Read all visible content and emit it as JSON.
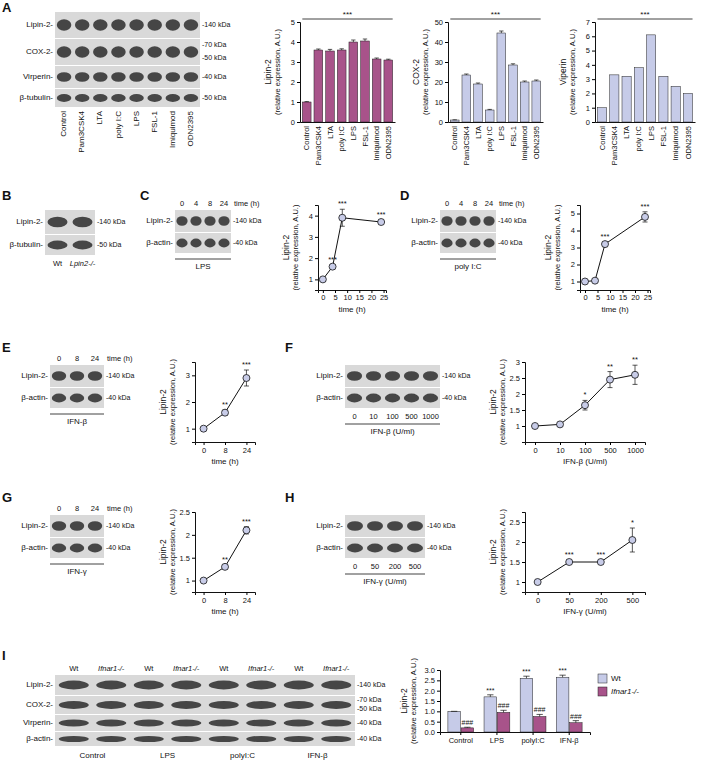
{
  "chart_data": [
    {
      "type": "bar",
      "categories": [
        "Control",
        "Pam3CSK4",
        "LTA",
        "poly I:C",
        "LPS",
        "FSL-1",
        "Imiquimod",
        "ODN2395"
      ],
      "values": [
        1,
        3.6,
        3.55,
        3.6,
        4.0,
        4.05,
        3.15,
        3.1
      ],
      "errors": [
        0.02,
        0.05,
        0.08,
        0.06,
        0.1,
        0.1,
        0.05,
        0.04
      ],
      "color": "#a8538a",
      "ylim": [
        0,
        5
      ],
      "yticks": [
        0,
        1,
        2,
        3,
        4,
        5
      ],
      "y_label": [
        "Lipin-2",
        "(relative expression, A.U.)"
      ],
      "annotation": "***"
    },
    {
      "type": "bar",
      "categories": [
        "Control",
        "Pam3CSK4",
        "LTA",
        "poly I:C",
        "LPS",
        "FSL-1",
        "Imiquimod",
        "ODN2395"
      ],
      "values": [
        1,
        23.5,
        19,
        6,
        44.5,
        28.5,
        20,
        20.5
      ],
      "errors": [
        0.1,
        0.5,
        0.5,
        0.3,
        1,
        0.6,
        0.5,
        0.5
      ],
      "color": "#c6cbe8",
      "ylim": [
        0,
        50
      ],
      "yticks": [
        0,
        10,
        20,
        30,
        40,
        50
      ],
      "y_label": [
        "COX-2",
        "(relative expression, A.U.)"
      ],
      "annotation": "***"
    },
    {
      "type": "bar",
      "categories": [
        "Control",
        "Pam3CSK4",
        "LTA",
        "poly I:C",
        "LPS",
        "FSL-1",
        "Imiquimod",
        "ODN2395"
      ],
      "values": [
        1,
        3.3,
        3.2,
        3.8,
        6.1,
        3.2,
        2.5,
        2.0
      ],
      "color": "#c6cbe8",
      "ylim": [
        0,
        7
      ],
      "yticks": [
        0,
        1,
        2,
        3,
        4,
        5,
        6,
        7
      ],
      "y_label": [
        "Viperin",
        "(relative expression, A.U.)"
      ],
      "annotation": "***"
    },
    {
      "type": "line",
      "x": [
        0,
        4,
        8,
        24
      ],
      "values": [
        1,
        1.6,
        3.9,
        3.7
      ],
      "errors": [
        0.05,
        0.1,
        0.4,
        0.1
      ],
      "annotations": [
        null,
        "***",
        "***",
        "***"
      ],
      "xlim": [
        -2,
        26
      ],
      "xticks": [
        0,
        5,
        10,
        15,
        20,
        25
      ],
      "ylim": [
        0.5,
        4.5
      ],
      "yticks": [
        1,
        2,
        3,
        4
      ],
      "x_label": "time (h)",
      "y_label": [
        "Lipin-2",
        "(relative expression, A.U.)"
      ],
      "color": "#c8cce8",
      "marker": "circle"
    },
    {
      "type": "line",
      "x": [
        0,
        4,
        8,
        24
      ],
      "values": [
        1,
        1.05,
        3.2,
        4.8
      ],
      "errors": [
        0.05,
        0.05,
        0.15,
        0.3
      ],
      "annotations": [
        null,
        null,
        "***",
        "***"
      ],
      "xlim": [
        -2,
        26
      ],
      "xticks": [
        0,
        5,
        10,
        15,
        20,
        25
      ],
      "ylim": [
        0.5,
        5.5
      ],
      "yticks": [
        1,
        2,
        3,
        4,
        5
      ],
      "x_label": "time (h)",
      "y_label": [
        "Lipin-2",
        "(relative expression, A.U.)"
      ],
      "color": "#c8cce8",
      "marker": "circle"
    },
    {
      "type": "line",
      "categories": [
        "0",
        "8",
        "24"
      ],
      "values": [
        1,
        1.6,
        2.9
      ],
      "errors": [
        0.03,
        0.1,
        0.3
      ],
      "annotations": [
        null,
        "**",
        "***"
      ],
      "ylim": [
        0.5,
        3.5
      ],
      "yticks": [
        1,
        2,
        3
      ],
      "x_label": "time (h)",
      "y_label": [
        "Lipin-2",
        "(relative expression, A.U.)"
      ],
      "color": "#c8cce8",
      "marker": "circle"
    },
    {
      "type": "line",
      "categories": [
        "0",
        "10",
        "100",
        "500",
        "1000"
      ],
      "values": [
        1,
        1.05,
        1.65,
        2.45,
        2.6
      ],
      "errors": [
        0.03,
        0.05,
        0.15,
        0.25,
        0.3
      ],
      "annotations": [
        null,
        null,
        "*",
        "**",
        "**"
      ],
      "ylim": [
        0.5,
        3
      ],
      "yticks": [
        1,
        1.5,
        2,
        2.5,
        3
      ],
      "x_label": "IFN-β (U/ml)",
      "y_label": [
        "Lipin-2",
        "(relative expression, A.U.)"
      ],
      "color": "#c8cce8",
      "marker": "circle"
    },
    {
      "type": "line",
      "categories": [
        "0",
        "8",
        "24"
      ],
      "values": [
        1,
        1.3,
        2.1
      ],
      "errors": [
        0.02,
        0.05,
        0.08
      ],
      "annotations": [
        null,
        "**",
        "***"
      ],
      "ylim": [
        0.75,
        2.5
      ],
      "yticks": [
        1,
        1.5,
        2,
        2.5
      ],
      "x_label": "time (h)",
      "y_label": [
        "Lipin-2",
        "(relative expression, A.U.)"
      ],
      "color": "#c8cce8",
      "marker": "circle"
    },
    {
      "type": "line",
      "categories": [
        "0",
        "50",
        "200",
        "500"
      ],
      "values": [
        1,
        1.5,
        1.5,
        2.05
      ],
      "errors": [
        0.02,
        0.05,
        0.05,
        0.3
      ],
      "annotations": [
        null,
        "***",
        "***",
        "*"
      ],
      "ylim": [
        0.75,
        2.75
      ],
      "yticks": [
        1,
        1.5,
        2,
        2.5
      ],
      "x_label": "IFN-γ (U/ml)",
      "y_label": [
        "Lipin-2",
        "(relative expression, A.U.)"
      ],
      "color": "#c8cce8",
      "marker": "circle"
    },
    {
      "type": "bar",
      "categories": [
        "Control",
        "LPS",
        "polyI:C",
        "IFN-β"
      ],
      "series": [
        {
          "name": "Wt",
          "color": "#c6cbe8",
          "values": [
            1,
            1.7,
            2.6,
            2.65
          ],
          "errors": [
            0,
            0.1,
            0.1,
            0.1
          ],
          "annotations": [
            null,
            "***",
            "***",
            "***"
          ]
        },
        {
          "name": "Ifnar1-/-",
          "color": "#a8538a",
          "values": [
            0.2,
            0.95,
            0.75,
            0.45
          ],
          "errors": [
            0.03,
            0.1,
            0.1,
            0.1
          ],
          "annotations": [
            "###",
            "###",
            "###",
            "###"
          ]
        }
      ],
      "ylim": [
        0,
        3
      ],
      "yticks": [
        {
          "value": 0,
          "label": "0.0"
        },
        0.5,
        {
          "value": 1,
          "label": "1.0"
        },
        1.5,
        {
          "value": 2,
          "label": "2.0"
        },
        2.5,
        {
          "value": 3,
          "label": "3.0"
        }
      ],
      "y_label": [
        "Lipin-2",
        "(relative expression, A.U.)"
      ],
      "legend": "right"
    }
  ],
  "blots": [
    {
      "panel": "A",
      "rows": [
        {
          "label": "Lipin-2-",
          "mw": [
            "-140 kDa"
          ]
        },
        {
          "label": "COX-2-",
          "mw": [
            "-70 kDa",
            "-50 kDa"
          ]
        },
        {
          "label": "Virperin-",
          "mw": [
            "-40 kDa"
          ]
        },
        {
          "label": "β-tubulin-",
          "mw": [
            "-50 kDa"
          ]
        }
      ],
      "lanes": [
        "Control",
        "Pam3CSK4",
        "LTA",
        "poly I:C",
        "LPS",
        "FSL-1",
        "Imiquimod",
        "ODN2395"
      ]
    },
    {
      "panel": "B",
      "rows": [
        {
          "label": "Lipin-2-",
          "mw": [
            "-140 kDa"
          ]
        },
        {
          "label": "β-tubulin-",
          "mw": [
            "-50 kDa"
          ]
        }
      ],
      "lanes": [
        "Wt",
        "Lpin2-/-"
      ]
    },
    {
      "panel": "C",
      "rows": [
        {
          "label": "Lipin-2-",
          "mw": [
            "-140 kDa"
          ]
        },
        {
          "label": "β-actin-",
          "mw": [
            "-40 kDa"
          ]
        }
      ],
      "lanes": [
        "0",
        "4",
        "8",
        "24"
      ],
      "lane_title": "time (h)",
      "caption": "LPS"
    },
    {
      "panel": "D",
      "rows": [
        {
          "label": "Lipin-2-",
          "mw": [
            "-140 kDa"
          ]
        },
        {
          "label": "β-actin-",
          "mw": [
            "-40 kDa"
          ]
        }
      ],
      "lanes": [
        "0",
        "4",
        "8",
        "24"
      ],
      "lane_title": "time (h)",
      "caption": "poly I:C"
    },
    {
      "panel": "E",
      "rows": [
        {
          "label": "Lipin-2-",
          "mw": [
            "-140 kDa"
          ]
        },
        {
          "label": "β-actin-",
          "mw": [
            "-40 kDa"
          ]
        }
      ],
      "lanes": [
        "0",
        "8",
        "24"
      ],
      "lane_title": "time (h)",
      "caption": "IFN-β"
    },
    {
      "panel": "F",
      "rows": [
        {
          "label": "Lipin-2-",
          "mw": [
            "-140 kDa"
          ]
        },
        {
          "label": "β-actin-",
          "mw": [
            "-40 kDa"
          ]
        }
      ],
      "lanes": [
        "0",
        "10",
        "100",
        "500",
        "1000"
      ],
      "caption": "IFN-β (U/ml)"
    },
    {
      "panel": "G",
      "rows": [
        {
          "label": "Lipin-2-",
          "mw": [
            "-140 kDa"
          ]
        },
        {
          "label": "β-actin-",
          "mw": [
            "-40 kDa"
          ]
        }
      ],
      "lanes": [
        "0",
        "8",
        "24"
      ],
      "lane_title": "time (h)",
      "caption": "IFN-γ"
    },
    {
      "panel": "H",
      "rows": [
        {
          "label": "Lipin-2-",
          "mw": [
            "-140 kDa"
          ]
        },
        {
          "label": "β-actin-",
          "mw": [
            "-40 kDa"
          ]
        }
      ],
      "lanes": [
        "0",
        "50",
        "200",
        "500"
      ],
      "caption": "IFN-γ (U/ml)"
    },
    {
      "panel": "I",
      "rows": [
        {
          "label": "Lipin-2-",
          "mw": [
            "-140 kDa"
          ]
        },
        {
          "label": "COX-2-",
          "mw": [
            "-70 kDa",
            "-50 kDa"
          ]
        },
        {
          "label": "Virperin-",
          "mw": [
            "-40 kDa"
          ]
        },
        {
          "label": "β-actin-",
          "mw": [
            "-40 kDa"
          ]
        }
      ],
      "lanes": [
        "Wt",
        "Ifnar1-/-",
        "Wt",
        "Ifnar1-/-",
        "Wt",
        "Ifnar1-/-",
        "Wt",
        "Ifnar1-/-"
      ],
      "groups": [
        "Control",
        "LPS",
        "polyI:C",
        "IFN-β"
      ]
    }
  ]
}
